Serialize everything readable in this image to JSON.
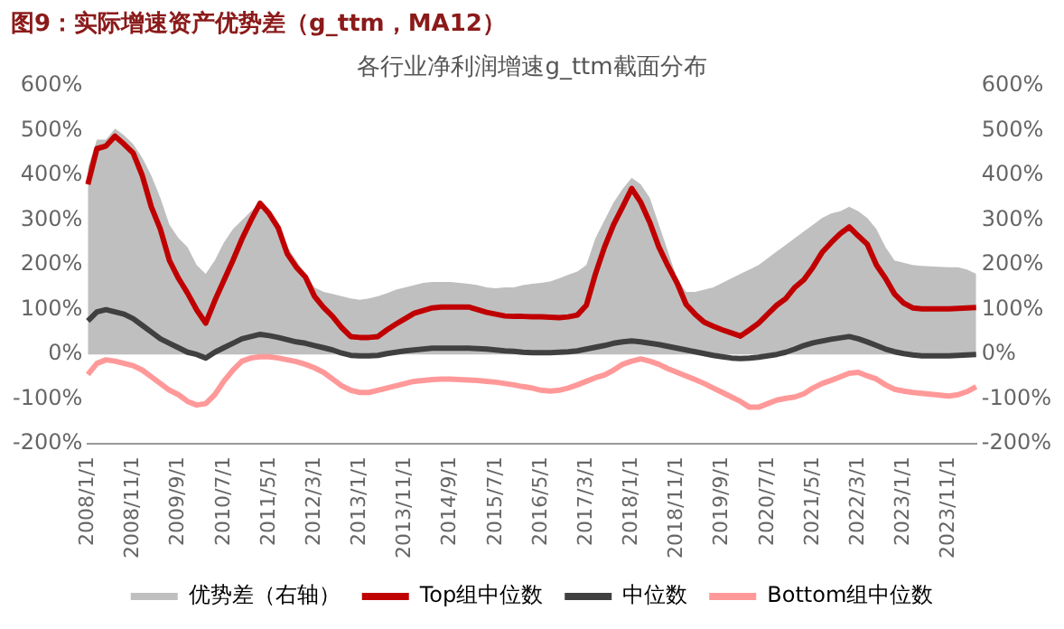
{
  "chart_data": {
    "type": "line",
    "title": "图9：实际增速资产优势差（g_ttm，MA12）",
    "subtitle": "各行业净利润增速g_ttm截面分布",
    "categories": [
      "2008/1/1",
      null,
      null,
      null,
      null,
      "2008/11/1",
      null,
      null,
      null,
      null,
      "2009/9/1",
      null,
      null,
      null,
      null,
      "2010/7/1",
      null,
      null,
      null,
      null,
      "2011/5/1",
      null,
      null,
      null,
      null,
      "2012/3/1",
      null,
      null,
      null,
      null,
      "2013/1/1",
      null,
      null,
      null,
      null,
      "2013/11/1",
      null,
      null,
      null,
      null,
      "2014/9/1",
      null,
      null,
      null,
      null,
      "2015/7/1",
      null,
      null,
      null,
      null,
      "2016/5/1",
      null,
      null,
      null,
      null,
      "2017/3/1",
      null,
      null,
      null,
      null,
      "2018/1/1",
      null,
      null,
      null,
      null,
      "2018/11/1",
      null,
      null,
      null,
      null,
      "2019/9/1",
      null,
      null,
      null,
      null,
      "2020/7/1",
      null,
      null,
      null,
      null,
      "2021/5/1",
      null,
      null,
      null,
      null,
      "2022/3/1",
      null,
      null,
      null,
      null,
      "2023/1/1",
      null,
      null,
      null,
      null,
      "2023/11/1",
      null,
      null,
      null
    ],
    "series": [
      {
        "name": "优势差（右轴）",
        "type": "area",
        "axis": "y2",
        "color": "#bfbfbf",
        "values": [
          417,
          480,
          480,
          505,
          490,
          470,
          440,
          400,
          350,
          290,
          260,
          240,
          200,
          180,
          210,
          250,
          280,
          300,
          320,
          340,
          320,
          290,
          240,
          210,
          180,
          150,
          140,
          135,
          130,
          125,
          122,
          125,
          130,
          137,
          145,
          150,
          155,
          160,
          162,
          162,
          162,
          160,
          158,
          155,
          150,
          148,
          150,
          150,
          155,
          158,
          160,
          163,
          170,
          178,
          185,
          200,
          260,
          300,
          340,
          370,
          395,
          380,
          350,
          290,
          230,
          170,
          140,
          140,
          145,
          150,
          160,
          170,
          180,
          190,
          200,
          215,
          230,
          245,
          260,
          275,
          290,
          305,
          315,
          320,
          330,
          320,
          305,
          280,
          240,
          210,
          205,
          200,
          198,
          197,
          196,
          195,
          195,
          190,
          180
        ]
      },
      {
        "name": "Top组中位数",
        "color": "#c00000",
        "values": [
          380,
          460,
          466,
          488,
          470,
          450,
          400,
          330,
          280,
          210,
          170,
          137,
          100,
          70,
          120,
          165,
          210,
          258,
          300,
          338,
          315,
          283,
          225,
          195,
          173,
          130,
          105,
          85,
          60,
          40,
          38,
          38,
          40,
          55,
          68,
          80,
          92,
          98,
          104,
          106,
          106,
          106,
          106,
          100,
          94,
          90,
          86,
          85,
          85,
          84,
          84,
          83,
          82,
          84,
          88,
          110,
          180,
          240,
          290,
          330,
          371,
          340,
          295,
          240,
          198,
          160,
          112,
          90,
          72,
          63,
          55,
          48,
          41,
          55,
          70,
          90,
          110,
          125,
          150,
          167,
          195,
          228,
          250,
          270,
          285,
          265,
          246,
          200,
          170,
          135,
          115,
          104,
          102,
          102,
          102,
          102,
          103,
          104,
          105
        ]
      },
      {
        "name": "中位数",
        "color": "#404040",
        "values": [
          75,
          95,
          100,
          95,
          90,
          80,
          65,
          50,
          35,
          25,
          15,
          5,
          0,
          -8,
          5,
          15,
          25,
          35,
          40,
          45,
          42,
          38,
          33,
          28,
          25,
          20,
          15,
          10,
          3,
          -2,
          -3,
          -3,
          -2,
          2,
          5,
          8,
          10,
          12,
          14,
          14,
          14,
          14,
          14,
          13,
          12,
          10,
          8,
          7,
          5,
          4,
          4,
          4,
          5,
          6,
          8,
          12,
          16,
          20,
          25,
          28,
          30,
          28,
          25,
          22,
          18,
          14,
          10,
          6,
          2,
          -2,
          -5,
          -8,
          -9,
          -8,
          -6,
          -3,
          0,
          5,
          12,
          20,
          26,
          30,
          34,
          37,
          40,
          35,
          28,
          20,
          12,
          6,
          2,
          -1,
          -3,
          -3,
          -3,
          -3,
          -2,
          -1,
          0
        ]
      },
      {
        "name": "Bottom组中位数",
        "color": "#ff9999",
        "values": [
          -45,
          -20,
          -12,
          -15,
          -20,
          -25,
          -35,
          -50,
          -65,
          -80,
          -90,
          -105,
          -113,
          -110,
          -90,
          -60,
          -35,
          -15,
          -8,
          -5,
          -5,
          -8,
          -12,
          -16,
          -22,
          -30,
          -40,
          -55,
          -70,
          -80,
          -85,
          -85,
          -80,
          -75,
          -70,
          -65,
          -60,
          -58,
          -56,
          -55,
          -55,
          -56,
          -57,
          -58,
          -60,
          -62,
          -65,
          -68,
          -72,
          -75,
          -80,
          -82,
          -80,
          -75,
          -68,
          -60,
          -52,
          -46,
          -35,
          -22,
          -15,
          -10,
          -15,
          -22,
          -32,
          -40,
          -48,
          -56,
          -65,
          -75,
          -85,
          -95,
          -105,
          -118,
          -118,
          -110,
          -102,
          -98,
          -95,
          -88,
          -75,
          -65,
          -58,
          -50,
          -42,
          -40,
          -48,
          -55,
          -68,
          -78,
          -82,
          -85,
          -87,
          -89,
          -91,
          -93,
          -90,
          -83,
          -72
        ]
      }
    ],
    "ylim": [
      -200,
      600
    ],
    "yticks": [
      {
        "value": -200,
        "label": "-200%"
      },
      {
        "value": -100,
        "label": "-100%"
      },
      {
        "value": 0,
        "label": "0%"
      },
      {
        "value": 100,
        "label": "100%"
      },
      {
        "value": 200,
        "label": "200%"
      },
      {
        "value": 300,
        "label": "300%"
      },
      {
        "value": 400,
        "label": "400%"
      },
      {
        "value": 500,
        "label": "500%"
      },
      {
        "value": 600,
        "label": "600%"
      }
    ],
    "y2lim": [
      -200,
      600
    ],
    "y2ticks": [
      {
        "value": -200,
        "label": "-200%"
      },
      {
        "value": -100,
        "label": "-100%"
      },
      {
        "value": 0,
        "label": "0%"
      },
      {
        "value": 100,
        "label": "100%"
      },
      {
        "value": 200,
        "label": "200%"
      },
      {
        "value": 300,
        "label": "300%"
      },
      {
        "value": 400,
        "label": "400%"
      },
      {
        "value": 500,
        "label": "500%"
      },
      {
        "value": 600,
        "label": "600%"
      }
    ],
    "grid": false,
    "legend": "bottom",
    "marker": "none",
    "line_style": "solid"
  }
}
